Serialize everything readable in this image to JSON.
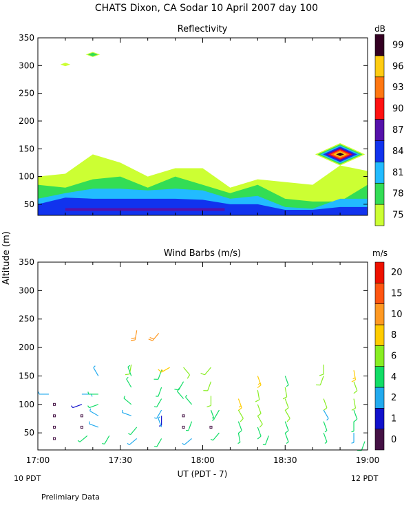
{
  "page": {
    "title": "CHATS Dixon, CA  Sodar  10 April 2007  day 100",
    "ylabel": "Altitude (m)",
    "xlabel": "UT  (PDT - 7)",
    "left_date": "10 PDT",
    "right_date": "12 PDT",
    "footer": "Prelimiary Data"
  },
  "chart_data": [
    {
      "type": "heatmap",
      "title": "Reflectivity",
      "colorbar_label": "dB",
      "colorbar_ticks": [
        "75",
        "78",
        "81",
        "84",
        "87",
        "90",
        "93",
        "96",
        "99"
      ],
      "colors": [
        "#ccff33",
        "#33dd55",
        "#22bbff",
        "#1133ee",
        "#5511aa",
        "#ff1111",
        "#ff7711",
        "#ffcc11",
        "#330022"
      ],
      "x_range": [
        "17:00",
        "19:00"
      ],
      "xticks": [
        "17:00",
        "17:30",
        "18:00",
        "18:30",
        "19:00"
      ],
      "ylim": [
        30,
        350
      ],
      "yticks": [
        50,
        100,
        150,
        200,
        250,
        300,
        350
      ],
      "x_minutes": [
        0,
        10,
        20,
        30,
        40,
        50,
        60,
        70,
        80,
        90,
        100,
        110,
        120
      ],
      "layer_tops_m": {
        "75": [
          100,
          105,
          140,
          125,
          100,
          115,
          115,
          80,
          95,
          90,
          85,
          120,
          110
        ],
        "78": [
          85,
          80,
          95,
          100,
          80,
          100,
          85,
          70,
          85,
          60,
          55,
          55,
          85
        ],
        "81": [
          60,
          70,
          78,
          78,
          75,
          78,
          75,
          60,
          65,
          45,
          42,
          60,
          60
        ],
        "84": [
          50,
          62,
          60,
          60,
          60,
          60,
          58,
          50,
          50,
          40,
          40,
          45,
          45
        ]
      },
      "hotspots": [
        {
          "time_min": 110,
          "altitude_m": 140,
          "peak_db": 99
        },
        {
          "time_min": 20,
          "altitude_m": 320,
          "peak_db": 78
        },
        {
          "time_min": 10,
          "altitude_m": 302,
          "peak_db": 75
        }
      ]
    },
    {
      "type": "scatter",
      "title": "Wind Barbs (m/s)",
      "colorbar_label": "m/s",
      "colorbar_ticks": [
        "0",
        "1",
        "2",
        "4",
        "6",
        "8",
        "10",
        "15",
        "20"
      ],
      "colors": [
        "#441144",
        "#1111cc",
        "#22aaee",
        "#11dd66",
        "#88ee22",
        "#ffcc00",
        "#ff9922",
        "#ff5511",
        "#ee1100"
      ],
      "x_range": [
        "17:00",
        "19:00"
      ],
      "xticks": [
        "17:00",
        "17:30",
        "18:00",
        "18:30",
        "19:00"
      ],
      "ylim": [
        20,
        350
      ],
      "yticks": [
        50,
        100,
        150,
        200,
        250,
        300,
        350
      ],
      "barbs": [
        {
          "t": 4,
          "z": 118,
          "dir": 270,
          "spd": 3
        },
        {
          "t": 6,
          "z": 100,
          "dir": 0,
          "spd": 0
        },
        {
          "t": 6,
          "z": 80,
          "dir": 0,
          "spd": 0
        },
        {
          "t": 6,
          "z": 60,
          "dir": 0,
          "spd": 0
        },
        {
          "t": 6,
          "z": 40,
          "dir": 0,
          "spd": 0
        },
        {
          "t": 16,
          "z": 118,
          "dir": 90,
          "spd": 3
        },
        {
          "t": 16,
          "z": 100,
          "dir": 250,
          "spd": 1
        },
        {
          "t": 16,
          "z": 80,
          "dir": 0,
          "spd": 0
        },
        {
          "t": 16,
          "z": 60,
          "dir": 0,
          "spd": 0
        },
        {
          "t": 18,
          "z": 45,
          "dir": 230,
          "spd": 4
        },
        {
          "t": 22,
          "z": 150,
          "dir": 330,
          "spd": 3
        },
        {
          "t": 22,
          "z": 118,
          "dir": 270,
          "spd": 4
        },
        {
          "t": 22,
          "z": 100,
          "dir": 250,
          "spd": 4
        },
        {
          "t": 22,
          "z": 80,
          "dir": 300,
          "spd": 3
        },
        {
          "t": 22,
          "z": 60,
          "dir": 290,
          "spd": 3
        },
        {
          "t": 26,
          "z": 45,
          "dir": 210,
          "spd": 4
        },
        {
          "t": 34,
          "z": 170,
          "dir": 190,
          "spd": 6
        },
        {
          "t": 34,
          "z": 150,
          "dir": 340,
          "spd": 4
        },
        {
          "t": 34,
          "z": 130,
          "dir": 330,
          "spd": 4
        },
        {
          "t": 34,
          "z": 100,
          "dir": 310,
          "spd": 4
        },
        {
          "t": 34,
          "z": 80,
          "dir": 290,
          "spd": 3
        },
        {
          "t": 36,
          "z": 60,
          "dir": 220,
          "spd": 4
        },
        {
          "t": 36,
          "z": 40,
          "dir": 230,
          "spd": 3
        },
        {
          "t": 36,
          "z": 230,
          "dir": 190,
          "spd": 12
        },
        {
          "t": 44,
          "z": 225,
          "dir": 220,
          "spd": 12
        },
        {
          "t": 45,
          "z": 160,
          "dir": 200,
          "spd": 5
        },
        {
          "t": 45,
          "z": 130,
          "dir": 200,
          "spd": 4
        },
        {
          "t": 45,
          "z": 110,
          "dir": 210,
          "spd": 4
        },
        {
          "t": 45,
          "z": 90,
          "dir": 210,
          "spd": 3
        },
        {
          "t": 45,
          "z": 80,
          "dir": 180,
          "spd": 1
        },
        {
          "t": 45,
          "z": 60,
          "dir": 340,
          "spd": 3
        },
        {
          "t": 45,
          "z": 40,
          "dir": 210,
          "spd": 4
        },
        {
          "t": 48,
          "z": 165,
          "dir": 240,
          "spd": 8
        },
        {
          "t": 53,
          "z": 165,
          "dir": 140,
          "spd": 7
        },
        {
          "t": 53,
          "z": 140,
          "dir": 210,
          "spd": 5
        },
        {
          "t": 53,
          "z": 110,
          "dir": 320,
          "spd": 5
        },
        {
          "t": 53,
          "z": 80,
          "dir": 0,
          "spd": 0
        },
        {
          "t": 53,
          "z": 60,
          "dir": 0,
          "spd": 0
        },
        {
          "t": 56,
          "z": 100,
          "dir": 320,
          "spd": 4
        },
        {
          "t": 56,
          "z": 70,
          "dir": 200,
          "spd": 4
        },
        {
          "t": 56,
          "z": 40,
          "dir": 230,
          "spd": 3
        },
        {
          "t": 63,
          "z": 165,
          "dir": 220,
          "spd": 6
        },
        {
          "t": 63,
          "z": 140,
          "dir": 200,
          "spd": 6
        },
        {
          "t": 63,
          "z": 115,
          "dir": 180,
          "spd": 7
        },
        {
          "t": 63,
          "z": 90,
          "dir": 160,
          "spd": 4
        },
        {
          "t": 63,
          "z": 60,
          "dir": 0,
          "spd": 0
        },
        {
          "t": 66,
          "z": 90,
          "dir": 210,
          "spd": 4
        },
        {
          "t": 66,
          "z": 50,
          "dir": 220,
          "spd": 4
        },
        {
          "t": 73,
          "z": 110,
          "dir": 160,
          "spd": 8
        },
        {
          "t": 73,
          "z": 90,
          "dir": 150,
          "spd": 6
        },
        {
          "t": 73,
          "z": 70,
          "dir": 160,
          "spd": 5
        },
        {
          "t": 73,
          "z": 50,
          "dir": 170,
          "spd": 4
        },
        {
          "t": 80,
          "z": 150,
          "dir": 160,
          "spd": 9
        },
        {
          "t": 80,
          "z": 125,
          "dir": 170,
          "spd": 6
        },
        {
          "t": 80,
          "z": 100,
          "dir": 160,
          "spd": 6
        },
        {
          "t": 80,
          "z": 80,
          "dir": 150,
          "spd": 7
        },
        {
          "t": 80,
          "z": 60,
          "dir": 160,
          "spd": 5
        },
        {
          "t": 84,
          "z": 45,
          "dir": 200,
          "spd": 4
        },
        {
          "t": 90,
          "z": 150,
          "dir": 160,
          "spd": 4
        },
        {
          "t": 90,
          "z": 130,
          "dir": 170,
          "spd": 6
        },
        {
          "t": 90,
          "z": 110,
          "dir": 160,
          "spd": 7
        },
        {
          "t": 90,
          "z": 90,
          "dir": 150,
          "spd": 6
        },
        {
          "t": 90,
          "z": 70,
          "dir": 160,
          "spd": 5
        },
        {
          "t": 90,
          "z": 50,
          "dir": 160,
          "spd": 4
        },
        {
          "t": 104,
          "z": 170,
          "dir": 180,
          "spd": 7
        },
        {
          "t": 104,
          "z": 150,
          "dir": 200,
          "spd": 6
        },
        {
          "t": 104,
          "z": 110,
          "dir": 160,
          "spd": 6
        },
        {
          "t": 104,
          "z": 90,
          "dir": 150,
          "spd": 3
        },
        {
          "t": 104,
          "z": 70,
          "dir": 160,
          "spd": 4
        },
        {
          "t": 104,
          "z": 50,
          "dir": 160,
          "spd": 4
        },
        {
          "t": 115,
          "z": 160,
          "dir": 170,
          "spd": 9
        },
        {
          "t": 115,
          "z": 140,
          "dir": 160,
          "spd": 7
        },
        {
          "t": 115,
          "z": 110,
          "dir": 170,
          "spd": 6
        },
        {
          "t": 115,
          "z": 90,
          "dir": 160,
          "spd": 5
        },
        {
          "t": 115,
          "z": 70,
          "dir": 180,
          "spd": 4
        },
        {
          "t": 115,
          "z": 50,
          "dir": 180,
          "spd": 3
        },
        {
          "t": 119,
          "z": 35,
          "dir": 200,
          "spd": 5
        }
      ]
    }
  ]
}
